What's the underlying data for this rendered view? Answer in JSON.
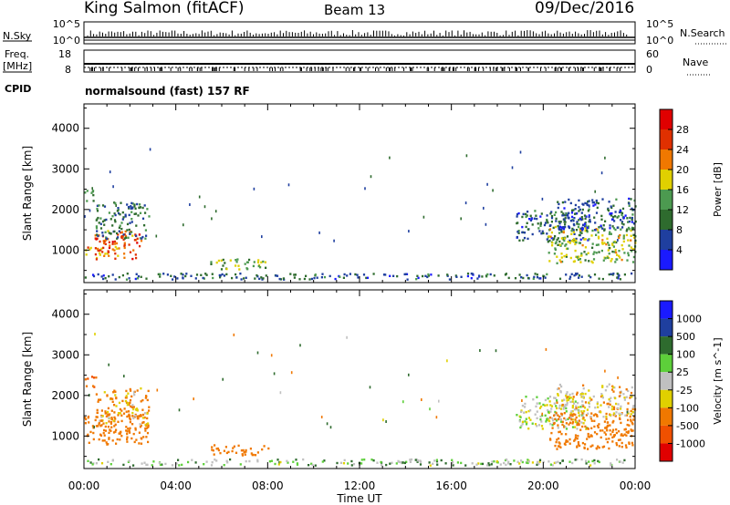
{
  "header": {
    "station": "King Salmon (fitACF)",
    "beam": "Beam 13",
    "date": "09/Dec/2016"
  },
  "strip_labels": {
    "nsky": "N.Sky",
    "nsearch": "N.Search",
    "freq": "Freq.",
    "freq_unit": "[MHz]",
    "nave": "Nave",
    "cpid": "CPID",
    "cpid_value": "normalsound (fast) 157 RF"
  },
  "strip_ticks": {
    "nsky_left": [
      "10^5",
      "10^0"
    ],
    "nsearch_right": [
      "10^5",
      "10^0"
    ],
    "freq_left": [
      "18",
      "8"
    ],
    "nave_right": [
      "60",
      "0"
    ]
  },
  "colors": {
    "power": [
      "#1a1aff",
      "#1f3f9f",
      "#2e6b2e",
      "#4c9a50",
      "#e0d000",
      "#f07800",
      "#e03000",
      "#e00000"
    ],
    "velocity": [
      "#1a1aff",
      "#1f3f9f",
      "#2e6b2e",
      "#5dcf3a",
      "#c0c0c0",
      "#e0d000",
      "#f07800",
      "#f05000",
      "#e00000"
    ]
  },
  "chart_data": [
    {
      "type": "heatmap",
      "title": "",
      "xlabel": "Time UT",
      "ylabel": "Slant Range [km]",
      "xticks": [
        "00:00",
        "04:00",
        "08:00",
        "12:00",
        "16:00",
        "20:00",
        "00:00"
      ],
      "yticks": [
        "1000",
        "2000",
        "3000",
        "4000"
      ],
      "xlim": [
        0,
        24
      ],
      "ylim": [
        200,
        4600
      ],
      "colorbar_label": "Power [dB]",
      "colorbar_ticks": [
        "4",
        "8",
        "12",
        "16",
        "20",
        "24",
        "28"
      ],
      "clim": [
        0,
        32
      ],
      "regions": [
        {
          "t": [
            0.0,
            0.5
          ],
          "r": [
            2200,
            2500
          ],
          "level": 12
        },
        {
          "t": [
            0.0,
            1.1
          ],
          "r": [
            900,
            1100
          ],
          "level": 22
        },
        {
          "t": [
            0.4,
            2.5
          ],
          "r": [
            800,
            1500
          ],
          "level": 24
        },
        {
          "t": [
            0.5,
            2.8
          ],
          "r": [
            1300,
            2200
          ],
          "level": 10
        },
        {
          "t": [
            5.5,
            8.0
          ],
          "r": [
            550,
            800
          ],
          "level": 14
        },
        {
          "t": [
            0.0,
            23.8
          ],
          "r": [
            300,
            450
          ],
          "level": 8
        },
        {
          "t": [
            18.8,
            22.0
          ],
          "r": [
            1200,
            2000
          ],
          "level": 8
        },
        {
          "t": [
            20.2,
            24.0
          ],
          "r": [
            700,
            1600
          ],
          "level": 16
        },
        {
          "t": [
            20.5,
            24.0
          ],
          "r": [
            1500,
            2300
          ],
          "level": 8
        }
      ]
    },
    {
      "type": "heatmap",
      "title": "",
      "xlabel": "Time UT",
      "ylabel": "Slant Range [km]",
      "xticks": [
        "00:00",
        "04:00",
        "08:00",
        "12:00",
        "16:00",
        "20:00",
        "00:00"
      ],
      "yticks": [
        "1000",
        "2000",
        "3000",
        "4000"
      ],
      "xlim": [
        0,
        24
      ],
      "ylim": [
        200,
        4600
      ],
      "colorbar_label": "Velocity [m s^-1]",
      "colorbar_ticks": [
        "1000",
        "500",
        "100",
        "25",
        "-25",
        "-100",
        "-500",
        "-1000"
      ],
      "regions": [
        {
          "t": [
            0.0,
            0.5
          ],
          "r": [
            2200,
            2500
          ],
          "level": -300
        },
        {
          "t": [
            0.0,
            2.8
          ],
          "r": [
            800,
            1600
          ],
          "level": -150
        },
        {
          "t": [
            0.5,
            2.8
          ],
          "r": [
            1300,
            2200
          ],
          "level": -80
        },
        {
          "t": [
            5.5,
            8.0
          ],
          "r": [
            550,
            800
          ],
          "level": -200
        },
        {
          "t": [
            0.0,
            23.8
          ],
          "r": [
            300,
            450
          ],
          "level": 30
        },
        {
          "t": [
            18.8,
            22.0
          ],
          "r": [
            1200,
            2000
          ],
          "level": 0
        },
        {
          "t": [
            20.2,
            24.0
          ],
          "r": [
            700,
            1600
          ],
          "level": -150
        },
        {
          "t": [
            20.5,
            24.0
          ],
          "r": [
            1500,
            2300
          ],
          "level": -40
        }
      ]
    }
  ]
}
